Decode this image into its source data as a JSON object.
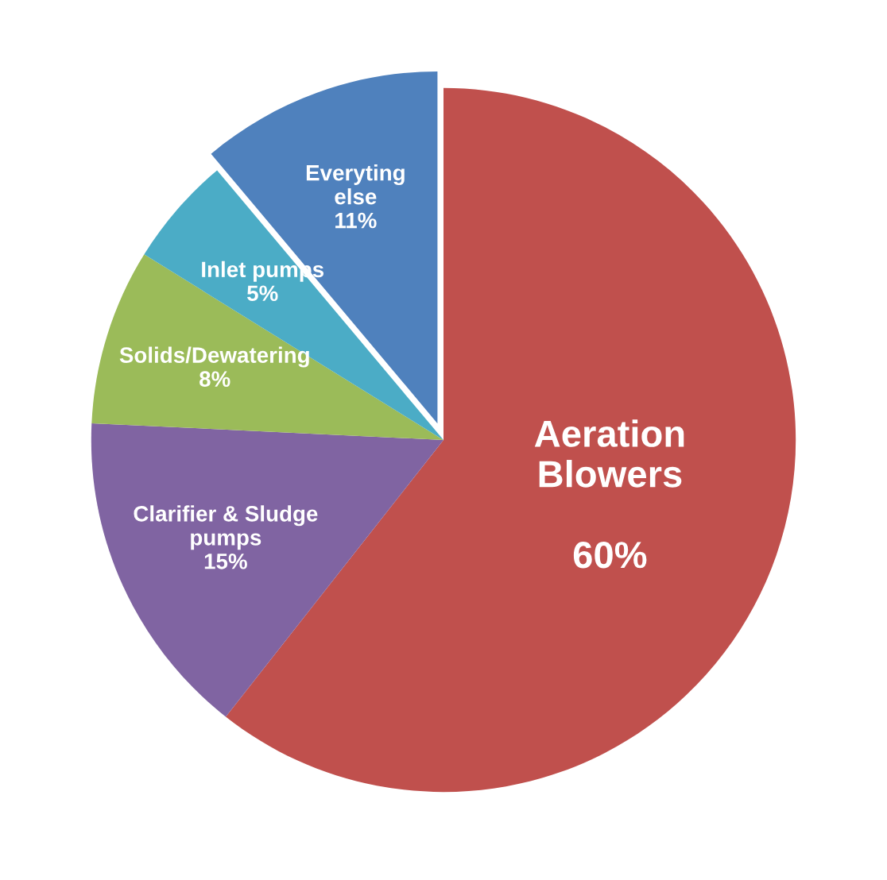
{
  "chart_data": {
    "type": "pie",
    "categories": [
      "Aeration\nBlowers",
      "Clarifier & Sludge\npumps",
      "Solids/Dewatering",
      "Inlet pumps",
      "Everyting\nelse"
    ],
    "values": [
      60,
      15,
      8,
      5,
      11
    ],
    "value_labels": [
      "60%",
      "15%",
      "8%",
      "5%",
      "11%"
    ],
    "colors": [
      "#c0504d",
      "#8064a2",
      "#9bbb59",
      "#4bacc6",
      "#4f81bd"
    ],
    "legend": false
  }
}
